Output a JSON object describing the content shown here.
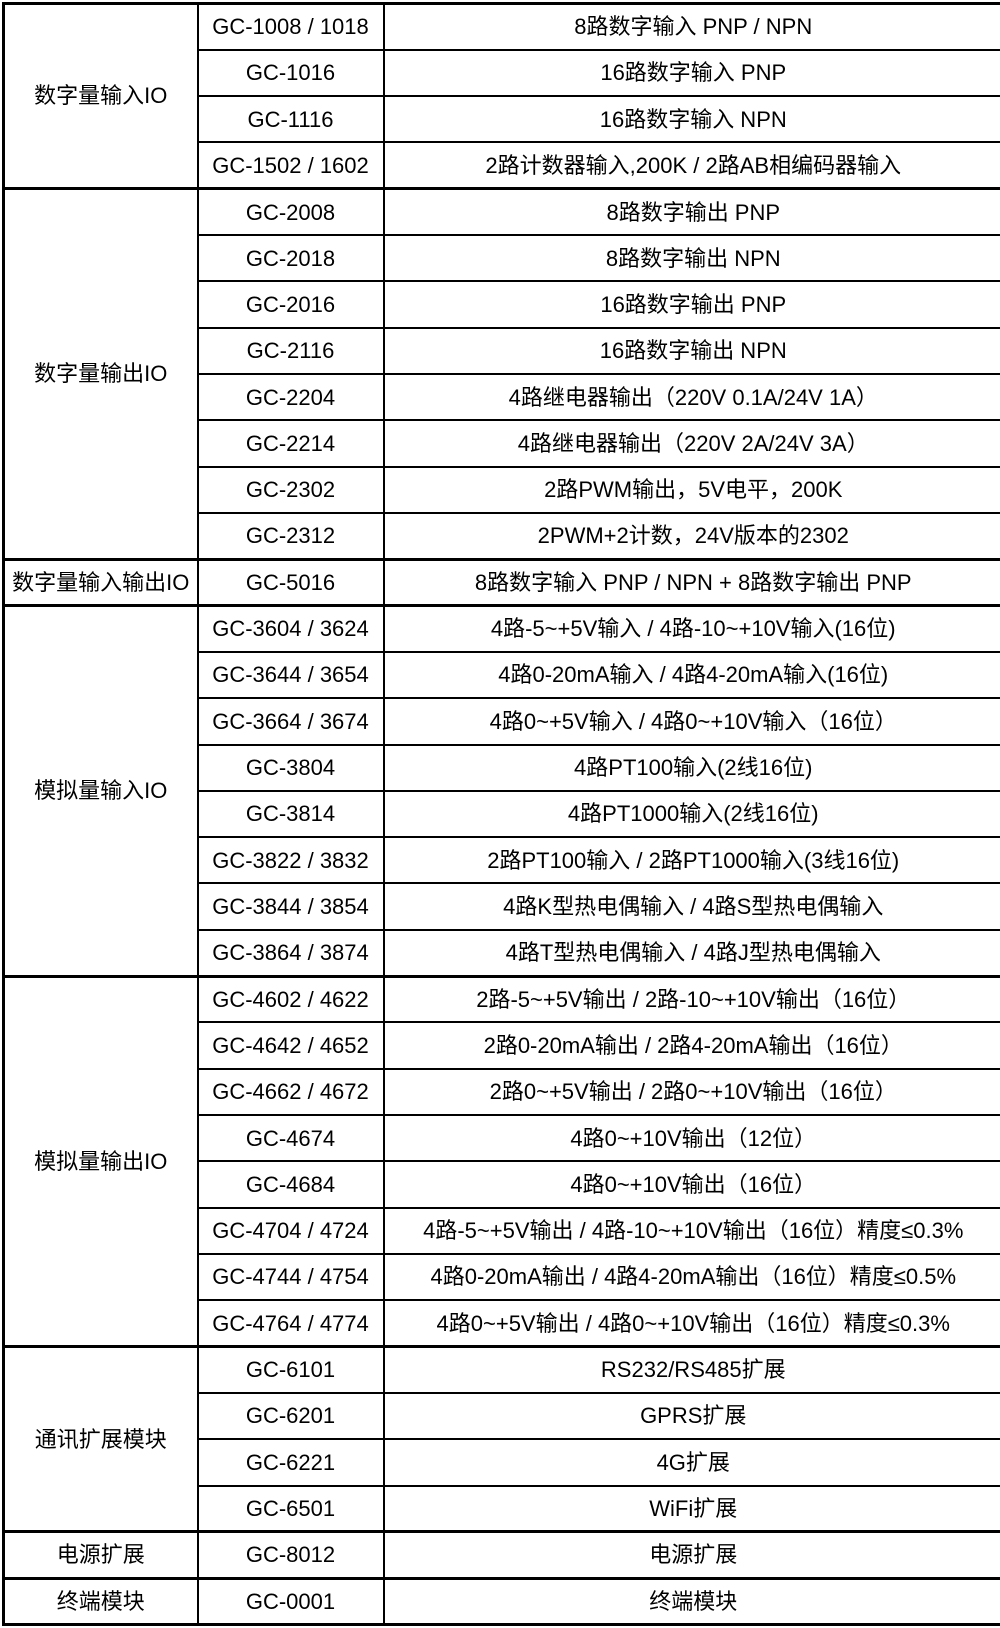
{
  "table": {
    "columns": [
      "category",
      "model",
      "description"
    ],
    "border_color": "#000000",
    "background_color": "#ffffff",
    "sections": [
      {
        "category": "数字量输入IO",
        "rows": [
          {
            "model": "GC-1008 / 1018",
            "description": "8路数字输入 PNP / NPN"
          },
          {
            "model": "GC-1016",
            "description": "16路数字输入 PNP"
          },
          {
            "model": "GC-1116",
            "description": "16路数字输入 NPN"
          },
          {
            "model": "GC-1502 / 1602",
            "description": "2路计数器输入,200K / 2路AB相编码器输入"
          }
        ]
      },
      {
        "category": "数字量输出IO",
        "rows": [
          {
            "model": "GC-2008",
            "description": "8路数字输出 PNP"
          },
          {
            "model": "GC-2018",
            "description": "8路数字输出 NPN"
          },
          {
            "model": "GC-2016",
            "description": "16路数字输出 PNP"
          },
          {
            "model": "GC-2116",
            "description": "16路数字输出 NPN"
          },
          {
            "model": "GC-2204",
            "description": "4路继电器输出（220V 0.1A/24V 1A）"
          },
          {
            "model": "GC-2214",
            "description": "4路继电器输出（220V 2A/24V 3A）"
          },
          {
            "model": "GC-2302",
            "description": "2路PWM输出，5V电平，200K"
          },
          {
            "model": "GC-2312",
            "description": "2PWM+2计数，24V版本的2302"
          }
        ]
      },
      {
        "category": "数字量输入输出IO",
        "rows": [
          {
            "model": "GC-5016",
            "description": "8路数字输入 PNP / NPN + 8路数字输出 PNP"
          }
        ]
      },
      {
        "category": "模拟量输入IO",
        "rows": [
          {
            "model": "GC-3604 / 3624",
            "description": "4路-5~+5V输入 / 4路-10~+10V输入(16位)"
          },
          {
            "model": "GC-3644 / 3654",
            "description": "4路0-20mA输入 / 4路4-20mA输入(16位)"
          },
          {
            "model": "GC-3664 / 3674",
            "description": "4路0~+5V输入 / 4路0~+10V输入（16位）"
          },
          {
            "model": "GC-3804",
            "description": "4路PT100输入(2线16位)"
          },
          {
            "model": "GC-3814",
            "description": "4路PT1000输入(2线16位)"
          },
          {
            "model": "GC-3822 / 3832",
            "description": "2路PT100输入 / 2路PT1000输入(3线16位)"
          },
          {
            "model": "GC-3844 / 3854",
            "description": "4路K型热电偶输入 / 4路S型热电偶输入"
          },
          {
            "model": "GC-3864 / 3874",
            "description": "4路T型热电偶输入 / 4路J型热电偶输入"
          }
        ]
      },
      {
        "category": "模拟量输出IO",
        "rows": [
          {
            "model": "GC-4602 / 4622",
            "description": "2路-5~+5V输出 / 2路-10~+10V输出（16位）"
          },
          {
            "model": "GC-4642 / 4652",
            "description": "2路0-20mA输出 / 2路4-20mA输出（16位）"
          },
          {
            "model": "GC-4662 / 4672",
            "description": "2路0~+5V输出 / 2路0~+10V输出（16位）"
          },
          {
            "model": "GC-4674",
            "description": "4路0~+10V输出（12位）"
          },
          {
            "model": "GC-4684",
            "description": "4路0~+10V输出（16位）"
          },
          {
            "model": "GC-4704 / 4724",
            "description": "4路-5~+5V输出 / 4路-10~+10V输出（16位）精度≤0.3%"
          },
          {
            "model": "GC-4744 / 4754",
            "description": "4路0-20mA输出 / 4路4-20mA输出（16位）精度≤0.5%"
          },
          {
            "model": "GC-4764 / 4774",
            "description": "4路0~+5V输出 / 4路0~+10V输出（16位）精度≤0.3%"
          }
        ]
      },
      {
        "category": "通讯扩展模块",
        "rows": [
          {
            "model": "GC-6101",
            "description": "RS232/RS485扩展"
          },
          {
            "model": "GC-6201",
            "description": "GPRS扩展"
          },
          {
            "model": "GC-6221",
            "description": "4G扩展"
          },
          {
            "model": "GC-6501",
            "description": "WiFi扩展"
          }
        ]
      },
      {
        "category": "电源扩展",
        "rows": [
          {
            "model": "GC-8012",
            "description": "电源扩展"
          }
        ]
      },
      {
        "category": "终端模块",
        "rows": [
          {
            "model": "GC-0001",
            "description": "终端模块"
          }
        ]
      }
    ]
  }
}
